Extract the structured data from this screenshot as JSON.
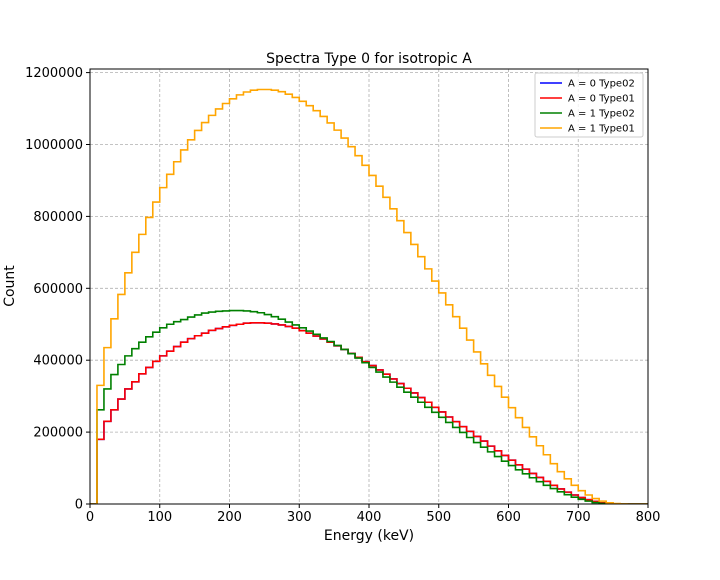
{
  "chart_data": {
    "type": "line",
    "drawstyle": "steps",
    "title": "Spectra Type 0 for isotropic A",
    "xlabel": "Energy (keV)",
    "ylabel": "Count",
    "xlim": [
      0,
      800
    ],
    "ylim": [
      0,
      1210000
    ],
    "xticks": [
      0,
      100,
      200,
      300,
      400,
      500,
      600,
      700,
      800
    ],
    "xtick_labels": [
      "0",
      "100",
      "200",
      "300",
      "400",
      "500",
      "600",
      "700",
      "800"
    ],
    "yticks": [
      0,
      200000,
      400000,
      600000,
      800000,
      1000000,
      1200000
    ],
    "ytick_labels": [
      "0",
      "200000",
      "400000",
      "600000",
      "800000",
      "1000000",
      "1200000"
    ],
    "grid": true,
    "legend_position": "top-right",
    "bin_width": 10,
    "bin_edges_start": 0,
    "series": [
      {
        "name": "A = 0 Type02",
        "color": "#0000ff",
        "values": [
          0,
          180000,
          230000,
          262000,
          292000,
          320000,
          340000,
          362000,
          380000,
          397000,
          412000,
          425000,
          438000,
          450000,
          460000,
          468000,
          475000,
          483000,
          488000,
          493000,
          497000,
          500000,
          503000,
          504000,
          504000,
          503000,
          501000,
          498000,
          494000,
          489000,
          482000,
          475000,
          467000,
          459000,
          450000,
          440000,
          430000,
          419000,
          408000,
          396000,
          385000,
          373000,
          361000,
          348000,
          335000,
          322000,
          309000,
          296000,
          283000,
          269000,
          256000,
          242000,
          229000,
          215000,
          202000,
          188000,
          175000,
          161000,
          148000,
          135000,
          122000,
          109000,
          97000,
          85000,
          74000,
          63000,
          52000,
          42000,
          33000,
          25000,
          18000,
          12000,
          7000,
          3500,
          1200,
          300,
          0,
          0,
          0,
          0
        ]
      },
      {
        "name": "A = 0 Type01",
        "color": "#ff0000",
        "values": [
          0,
          180000,
          230000,
          262000,
          292000,
          320000,
          340000,
          362000,
          380000,
          397000,
          412000,
          425000,
          438000,
          450000,
          460000,
          468000,
          475000,
          483000,
          488000,
          493000,
          497000,
          500000,
          503000,
          504000,
          504000,
          503000,
          501000,
          498000,
          494000,
          489000,
          482000,
          475000,
          467000,
          459000,
          450000,
          440000,
          430000,
          419000,
          408000,
          396000,
          385000,
          373000,
          361000,
          348000,
          335000,
          322000,
          309000,
          296000,
          283000,
          269000,
          256000,
          242000,
          229000,
          215000,
          202000,
          188000,
          175000,
          161000,
          148000,
          135000,
          122000,
          109000,
          97000,
          85000,
          74000,
          63000,
          52000,
          42000,
          33000,
          25000,
          18000,
          12000,
          7000,
          3500,
          1200,
          300,
          0,
          0,
          0,
          0
        ]
      },
      {
        "name": "A = 1 Type02",
        "color": "#008000",
        "values": [
          0,
          262000,
          320000,
          360000,
          388000,
          412000,
          432000,
          450000,
          465000,
          478000,
          490000,
          500000,
          507000,
          513000,
          520000,
          526000,
          531000,
          534000,
          536000,
          537000,
          538000,
          538000,
          537000,
          535000,
          532000,
          527000,
          521000,
          514000,
          506000,
          498000,
          490000,
          481000,
          472000,
          462000,
          452000,
          441000,
          430000,
          418000,
          406000,
          393000,
          380000,
          367000,
          353000,
          339000,
          325000,
          311000,
          297000,
          283000,
          269000,
          255000,
          241000,
          227000,
          213000,
          199000,
          185000,
          171000,
          158000,
          145000,
          132000,
          119000,
          107000,
          95000,
          84000,
          73000,
          62000,
          52000,
          43000,
          34000,
          26000,
          19000,
          13000,
          8000,
          4000,
          1500,
          400,
          0,
          0,
          0,
          0,
          0
        ]
      },
      {
        "name": "A = 1 Type01",
        "color": "#ffa500",
        "values": [
          0,
          330000,
          435000,
          515000,
          583000,
          643000,
          700000,
          750000,
          797000,
          840000,
          880000,
          917000,
          952000,
          985000,
          1013000,
          1039000,
          1061000,
          1081000,
          1099000,
          1114000,
          1127000,
          1138000,
          1146000,
          1151000,
          1153000,
          1153000,
          1151000,
          1147000,
          1140000,
          1131000,
          1120000,
          1108000,
          1094000,
          1078000,
          1060000,
          1040000,
          1018000,
          994000,
          969000,
          942000,
          914000,
          884000,
          853000,
          821000,
          788000,
          755000,
          722000,
          688000,
          654000,
          620000,
          587000,
          554000,
          521000,
          489000,
          456000,
          423000,
          390000,
          358000,
          327000,
          297000,
          268000,
          240000,
          213000,
          187000,
          162000,
          137000,
          112000,
          90000,
          70000,
          52000,
          37000,
          25000,
          15000,
          8000,
          3500,
          1200,
          300,
          0,
          0,
          0
        ]
      }
    ]
  }
}
